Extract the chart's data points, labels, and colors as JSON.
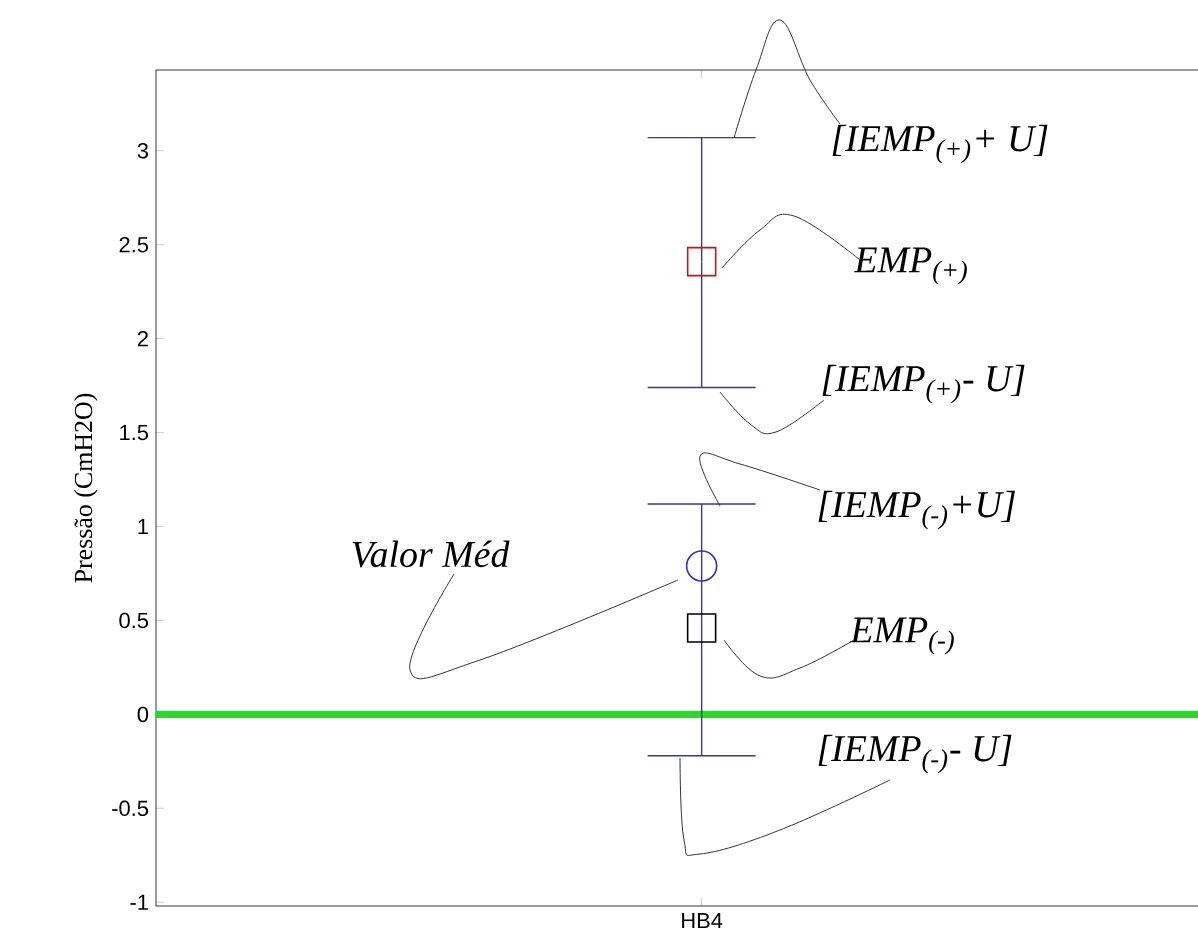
{
  "chart_data": {
    "type": "scatter",
    "ylabel": "Pressão (CmH2O)",
    "categories": [
      "HB4"
    ],
    "ylim": [
      -1.02,
      3.43
    ],
    "yticks": [
      -1,
      -0.5,
      0,
      0.5,
      1,
      1.5,
      2,
      2.5,
      3
    ],
    "grid": false,
    "series": [
      {
        "color": "#cc1111",
        "marker": "square",
        "values": [
          2.41
        ],
        "errors": [
          [
            1.74,
            3.07
          ]
        ]
      },
      {
        "color": "#000000",
        "marker": "square",
        "values": [
          0.46
        ],
        "errors": [
          [
            -0.22,
            1.12
          ]
        ]
      },
      {
        "color": "#3333aa",
        "marker": "circle",
        "values": [
          0.79
        ]
      }
    ],
    "ref_lines": [
      {
        "axis": "y",
        "value": 0,
        "color": "#22dd22"
      }
    ],
    "annotations": [
      "[IEMP$_{(+)}$+ U]",
      "EMP$_{(+)}$",
      "[IEMP$_{(+)}$- U]",
      "[IEMP$_{(-)}$+U]",
      "Valor Méd",
      "EMP$_{(-)}$",
      "[IEMP$_{(-)}$- U]"
    ]
  }
}
